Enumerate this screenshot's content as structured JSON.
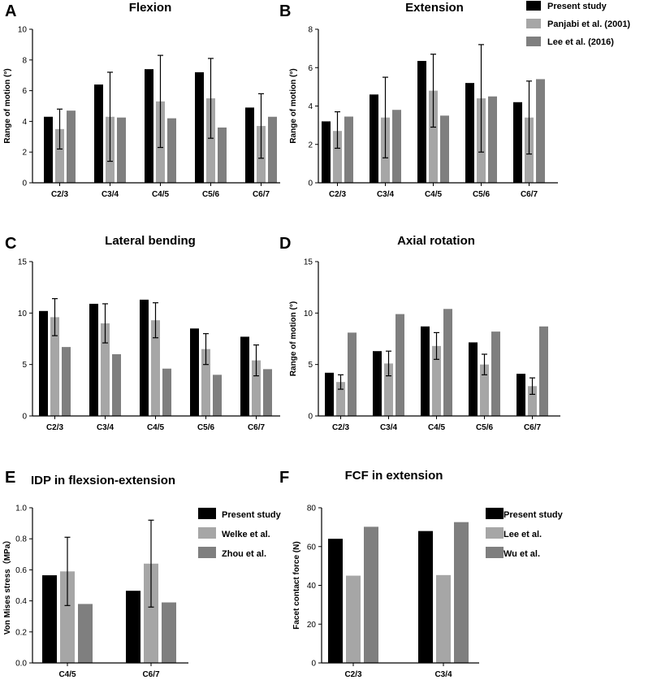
{
  "chart_data": [
    {
      "id": "A",
      "panel_label": "A",
      "type": "bar",
      "title": "Flexion",
      "xlabel": "",
      "ylabel": "Range of motion (°)",
      "ylim": [
        0,
        10
      ],
      "yticks": [
        0,
        2,
        4,
        6,
        8,
        10
      ],
      "categories": [
        "C2/3",
        "C3/4",
        "C4/5",
        "C5/6",
        "C6/7"
      ],
      "series": [
        {
          "name": "Present study",
          "color": "#000000",
          "values": [
            4.3,
            6.4,
            7.4,
            7.2,
            4.9
          ]
        },
        {
          "name": "Panjabi et al. (2001)",
          "color": "#a6a6a6",
          "values": [
            3.5,
            4.3,
            5.3,
            5.5,
            3.7
          ],
          "err_low": [
            2.2,
            1.4,
            2.3,
            2.9,
            1.6
          ],
          "err_high": [
            4.8,
            7.2,
            8.3,
            8.1,
            5.8
          ]
        },
        {
          "name": "Lee et al. (2016)",
          "color": "#7f7f7f",
          "values": [
            4.7,
            4.25,
            4.2,
            3.6,
            4.3
          ]
        }
      ]
    },
    {
      "id": "B",
      "panel_label": "B",
      "type": "bar",
      "title": "Extension",
      "xlabel": "",
      "ylabel": "Range of motion (°)",
      "ylim": [
        0,
        8
      ],
      "yticks": [
        0,
        2,
        4,
        6,
        8
      ],
      "categories": [
        "C2/3",
        "C3/4",
        "C4/5",
        "C5/6",
        "C6/7"
      ],
      "series": [
        {
          "name": "Present study",
          "color": "#000000",
          "values": [
            3.2,
            4.6,
            6.35,
            5.2,
            4.2
          ]
        },
        {
          "name": "Panjabi et al. (2001)",
          "color": "#a6a6a6",
          "values": [
            2.7,
            3.4,
            4.8,
            4.4,
            3.4
          ],
          "err_low": [
            1.8,
            1.3,
            2.9,
            1.6,
            1.5
          ],
          "err_high": [
            3.7,
            5.5,
            6.7,
            7.2,
            5.3
          ]
        },
        {
          "name": "Lee et al. (2016)",
          "color": "#7f7f7f",
          "values": [
            3.45,
            3.8,
            3.5,
            4.5,
            5.4
          ]
        }
      ]
    },
    {
      "id": "C",
      "panel_label": "C",
      "type": "bar",
      "title": "Lateral bending",
      "xlabel": "",
      "ylabel": "",
      "ylim": [
        0,
        15
      ],
      "yticks": [
        0,
        5,
        10,
        15
      ],
      "categories": [
        "C2/3",
        "C3/4",
        "C4/5",
        "C5/6",
        "C6/7"
      ],
      "series": [
        {
          "name": "Present study",
          "color": "#000000",
          "values": [
            10.2,
            10.9,
            11.3,
            8.5,
            7.7
          ]
        },
        {
          "name": "Panjabi et al. (2001)",
          "color": "#a6a6a6",
          "values": [
            9.6,
            9.0,
            9.3,
            6.5,
            5.4
          ],
          "err_low": [
            7.8,
            7.1,
            7.6,
            5.0,
            3.9
          ],
          "err_high": [
            11.4,
            10.9,
            11.0,
            8.0,
            6.9
          ]
        },
        {
          "name": "Lee et al. (2016)",
          "color": "#7f7f7f",
          "values": [
            6.7,
            6.0,
            4.6,
            4.0,
            4.55
          ]
        }
      ]
    },
    {
      "id": "D",
      "panel_label": "D",
      "type": "bar",
      "title": "Axial rotation",
      "xlabel": "",
      "ylabel": "Range of motion (°)",
      "ylim": [
        0,
        15
      ],
      "yticks": [
        0,
        5,
        10,
        15
      ],
      "categories": [
        "C2/3",
        "C3/4",
        "C4/5",
        "C5/6",
        "C6/7"
      ],
      "series": [
        {
          "name": "Present study",
          "color": "#000000",
          "values": [
            4.2,
            6.3,
            8.7,
            7.15,
            4.1
          ]
        },
        {
          "name": "Panjabi et al. (2001)",
          "color": "#a6a6a6",
          "values": [
            3.3,
            5.1,
            6.8,
            5.0,
            2.9
          ],
          "err_low": [
            2.6,
            3.9,
            5.5,
            4.0,
            2.1
          ],
          "err_high": [
            4.0,
            6.3,
            8.1,
            6.0,
            3.7
          ]
        },
        {
          "name": "Lee et al. (2016)",
          "color": "#7f7f7f",
          "values": [
            8.1,
            9.9,
            10.4,
            8.2,
            8.7
          ]
        }
      ]
    },
    {
      "id": "E",
      "panel_label": "E",
      "type": "bar",
      "title": "IDP in flexsion-extension",
      "xlabel": "",
      "ylabel": "Von Mises stress（MPa）",
      "ylim": [
        0,
        1.0
      ],
      "yticks": [
        0.0,
        0.2,
        0.4,
        0.6,
        0.8,
        1.0
      ],
      "tick_decimals": 1,
      "categories": [
        "C4/5",
        "C6/7"
      ],
      "series": [
        {
          "name": "Present study",
          "color": "#000000",
          "values": [
            0.565,
            0.465
          ]
        },
        {
          "name": "Welke et al.",
          "color": "#a6a6a6",
          "values": [
            0.59,
            0.64
          ],
          "err_low": [
            0.37,
            0.36
          ],
          "err_high": [
            0.81,
            0.92
          ]
        },
        {
          "name": "Zhou et al.",
          "color": "#7f7f7f",
          "values": [
            0.38,
            0.39
          ]
        }
      ]
    },
    {
      "id": "F",
      "panel_label": "F",
      "type": "bar",
      "title": "FCF in extension",
      "xlabel": "",
      "ylabel": "Facet contact force (N)",
      "ylim": [
        0,
        80
      ],
      "yticks": [
        0,
        20,
        40,
        60,
        80
      ],
      "categories": [
        "C2/3",
        "C3/4"
      ],
      "series": [
        {
          "name": "Present study",
          "color": "#000000",
          "values": [
            64,
            68
          ]
        },
        {
          "name": "Lee et al.",
          "color": "#a6a6a6",
          "values": [
            45,
            45.3
          ]
        },
        {
          "name": "Wu et al.",
          "color": "#7f7f7f",
          "values": [
            70.2,
            72.6
          ]
        }
      ]
    }
  ],
  "legends": {
    "top": [
      "Present study",
      "Panjabi et al. (2001)",
      "Lee et al. (2016)"
    ],
    "top_colors": [
      "#000000",
      "#a6a6a6",
      "#7f7f7f"
    ],
    "E": [
      "Present study",
      "Welke et al.",
      "Zhou et al."
    ],
    "E_colors": [
      "#000000",
      "#a6a6a6",
      "#7f7f7f"
    ],
    "F": [
      "Present study",
      "Lee et al.",
      "Wu et al."
    ],
    "F_colors": [
      "#000000",
      "#a6a6a6",
      "#7f7f7f"
    ]
  }
}
